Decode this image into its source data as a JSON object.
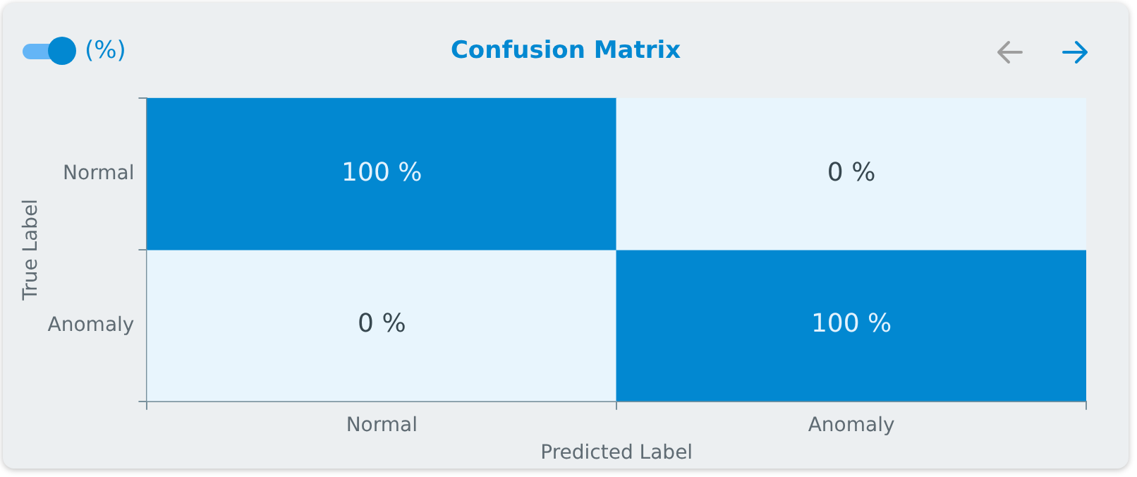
{
  "chart_data": {
    "type": "heatmap",
    "title": "Confusion Matrix",
    "xlabel": "Predicted Label",
    "ylabel": "True Label",
    "annotations": [
      "(%)"
    ],
    "categories": [
      "Normal",
      "Anomaly"
    ],
    "y_categories": [
      "Normal",
      "Anomaly"
    ],
    "cells": [
      [
        100,
        0
      ],
      [
        0,
        100
      ]
    ],
    "cell_labels": [
      [
        "100 %",
        "0 %"
      ],
      [
        "0 %",
        "100 %"
      ]
    ]
  }
}
